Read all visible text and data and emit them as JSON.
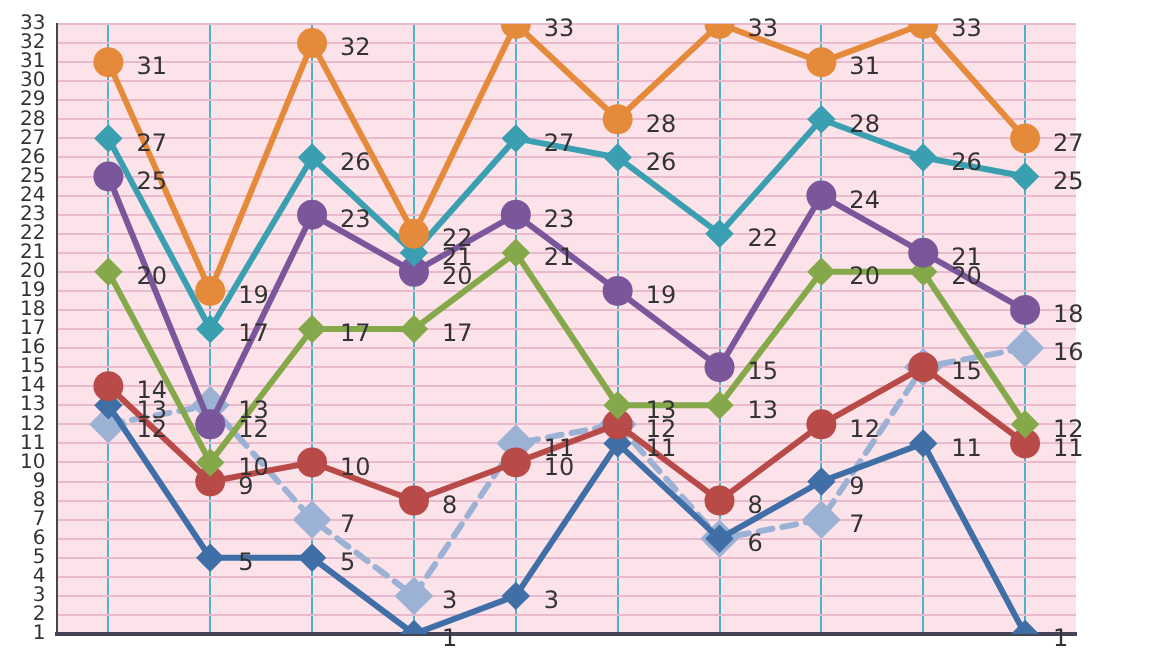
{
  "chart_data": {
    "type": "line",
    "categories": [
      null,
      null,
      null,
      null,
      null,
      null,
      null,
      null,
      null,
      null
    ],
    "ylim": [
      1,
      33
    ],
    "yticks": [
      1,
      2,
      3,
      4,
      5,
      6,
      7,
      8,
      9,
      10,
      11,
      12,
      13,
      14,
      15,
      16,
      17,
      18,
      19,
      20,
      21,
      22,
      23,
      24,
      25,
      26,
      27,
      28,
      29,
      30,
      31,
      32,
      33
    ],
    "grid": true,
    "legend": false,
    "data_labels": true,
    "tick_labels": "y",
    "series": [
      {
        "color": "#e58a3a",
        "marker": "circle",
        "values": [
          31,
          19,
          32,
          22,
          33,
          28,
          33,
          31,
          33,
          27
        ]
      },
      {
        "color": "#3a9fb0",
        "marker": "diamond",
        "values": [
          27,
          17,
          26,
          21,
          27,
          26,
          22,
          28,
          26,
          25
        ]
      },
      {
        "color": "#7a569a",
        "marker": "circle",
        "values": [
          25,
          12,
          23,
          20,
          23,
          19,
          15,
          24,
          21,
          18
        ]
      },
      {
        "color": "#84a84a",
        "marker": "diamond",
        "values": [
          20,
          10,
          17,
          17,
          21,
          13,
          13,
          20,
          20,
          12
        ]
      },
      {
        "color": "#b84a48",
        "marker": "circle",
        "values": [
          14,
          9,
          10,
          8,
          10,
          12,
          8,
          12,
          15,
          11
        ]
      },
      {
        "color": "#3f6fa6",
        "marker": "diamond",
        "values": [
          13,
          5,
          5,
          1,
          3,
          11,
          6,
          9,
          11,
          1
        ]
      },
      {
        "color": "#9cb2d4",
        "marker": "diamond",
        "line_style": "dashed",
        "values": [
          12,
          13,
          7,
          3,
          11,
          12,
          6,
          7,
          15,
          16
        ],
        "value_labels": [
          "12",
          "13",
          "7",
          "3",
          "11",
          null,
          null,
          "7",
          null,
          "16"
        ]
      }
    ]
  }
}
